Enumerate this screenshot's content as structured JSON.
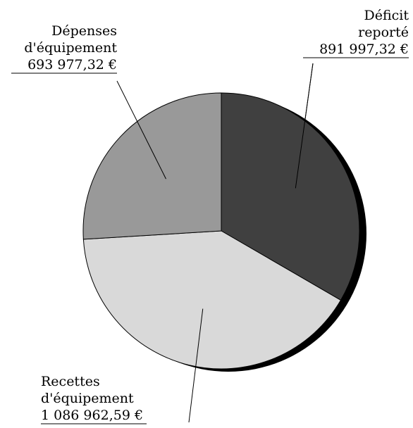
{
  "chart_data": {
    "type": "pie",
    "title": "",
    "start_angle_deg": 0,
    "direction": "clockwise",
    "shadow": true,
    "slices": [
      {
        "label_lines": [
          "Déficit",
          "reporté",
          "891 997,32 €"
        ],
        "value": 891997.32,
        "color": "#404040"
      },
      {
        "label_lines": [
          "Recettes",
          "d'équipement",
          "1 086 962,59 €"
        ],
        "value": 1086962.59,
        "color": "#d9d9d9"
      },
      {
        "label_lines": [
          "Dépenses",
          "d'équipement",
          "693 977,32 €"
        ],
        "value": 693977.32,
        "color": "#999999"
      }
    ]
  }
}
